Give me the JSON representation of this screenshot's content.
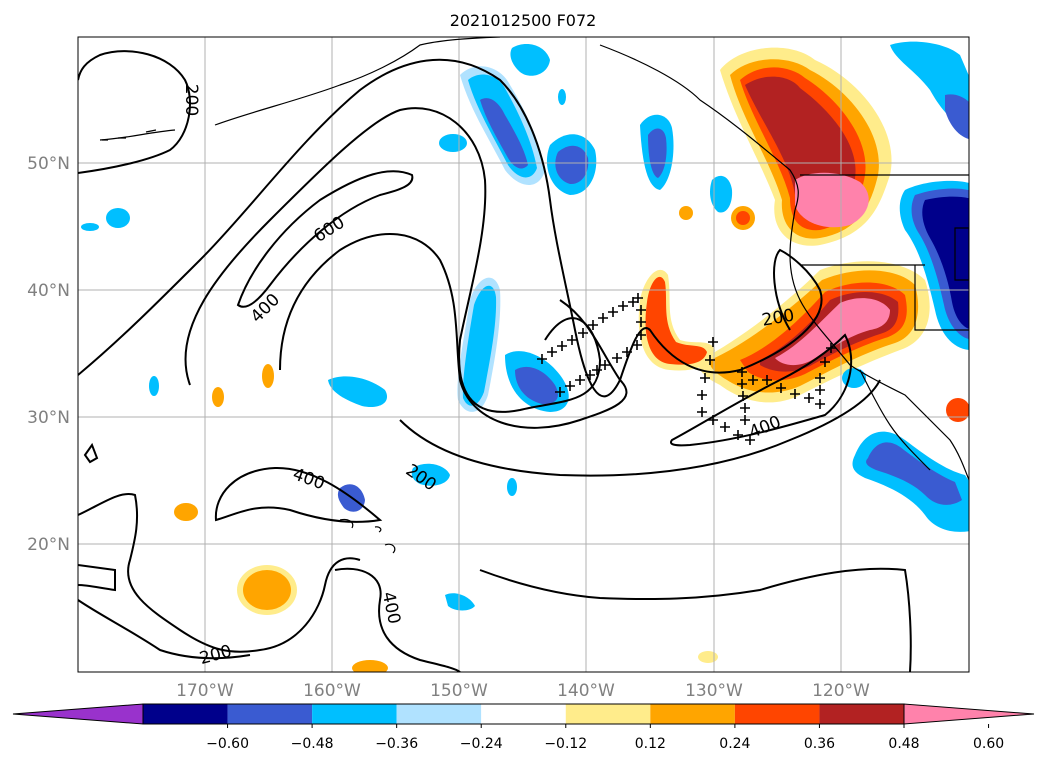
{
  "title": "2021012500 F072",
  "lat_labels": [
    "50°N",
    "40°N",
    "30°N",
    "20°N"
  ],
  "lon_labels": [
    "170°W",
    "160°W",
    "150°W",
    "140°W",
    "130°W",
    "120°W"
  ],
  "colorbar": {
    "tick_labels": [
      "−0.60",
      "−0.48",
      "−0.36",
      "−0.24",
      "−0.12",
      "0.12",
      "0.24",
      "0.36",
      "0.48",
      "0.60"
    ],
    "colors": [
      "#9932cc",
      "#00008b",
      "#3a5bd1",
      "#00bfff",
      "#b0e2ff",
      "#ffffff",
      "#ffec8b",
      "#ffa500",
      "#ff4500",
      "#b22222",
      "#ff82ab"
    ]
  },
  "contour_labels": [
    "200",
    "600",
    "400",
    "400",
    "200",
    "200",
    "400",
    "400",
    "200"
  ]
}
